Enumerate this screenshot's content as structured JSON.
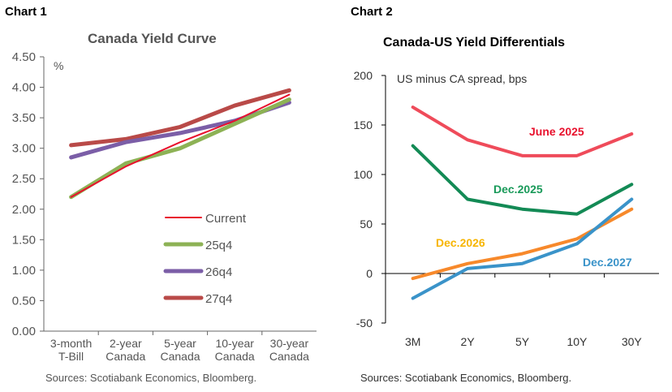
{
  "chart_data": [
    {
      "label": "Chart 1",
      "type": "line",
      "title": "Canada Yield Curve",
      "ylabel": "%",
      "ylim": [
        0,
        4.5
      ],
      "yticks": [
        "0.00",
        "0.50",
        "1.00",
        "1.50",
        "2.00",
        "2.50",
        "3.00",
        "3.50",
        "4.00",
        "4.50"
      ],
      "categories": [
        "3-month\nT-Bill",
        "2-year\nCanada",
        "5-year\nCanada",
        "10-year\nCanada",
        "30-year\nCanada"
      ],
      "legend_placement": "center-right",
      "grid": false,
      "series": [
        {
          "name": "Current",
          "color": "#e8112d",
          "values": [
            2.2,
            2.7,
            3.1,
            3.45,
            3.88
          ]
        },
        {
          "name": "25q4",
          "color": "#8db255",
          "values": [
            2.2,
            2.75,
            3.0,
            3.4,
            3.8
          ]
        },
        {
          "name": "26q4",
          "color": "#7b5ea7",
          "values": [
            2.85,
            3.1,
            3.25,
            3.45,
            3.75
          ]
        },
        {
          "name": "27q4",
          "color": "#b94a48",
          "values": [
            3.05,
            3.15,
            3.35,
            3.7,
            3.95
          ]
        }
      ],
      "source": "Sources: Scotiabank Economics, Bloomberg."
    },
    {
      "label": "Chart 2",
      "type": "line",
      "title": "Canada-US Yield Differentials",
      "ylabel": "US minus CA spread, bps",
      "ylim": [
        -50,
        200
      ],
      "yticks": [
        "-50",
        "0",
        "50",
        "100",
        "150",
        "200"
      ],
      "categories": [
        "3M",
        "2Y",
        "5Y",
        "10Y",
        "30Y"
      ],
      "grid": false,
      "series": [
        {
          "name": "June 2025",
          "color": "#ef4b5a",
          "label_color": "#e8112d",
          "values": [
            168,
            135,
            119,
            119,
            141
          ]
        },
        {
          "name": "Dec.2025",
          "color": "#138a55",
          "label_color": "#1a9a5a",
          "values": [
            129,
            75,
            65,
            60,
            90
          ]
        },
        {
          "name": "Dec.2026",
          "color": "#f7892b",
          "label_color": "#f7b500",
          "values": [
            -5,
            10,
            20,
            35,
            65
          ]
        },
        {
          "name": "Dec.2027",
          "color": "#3a93c9",
          "label_color": "#3a93c9",
          "values": [
            -25,
            5,
            10,
            30,
            75
          ]
        }
      ],
      "source": "Sources: Scotiabank Economics, Bloomberg."
    }
  ]
}
